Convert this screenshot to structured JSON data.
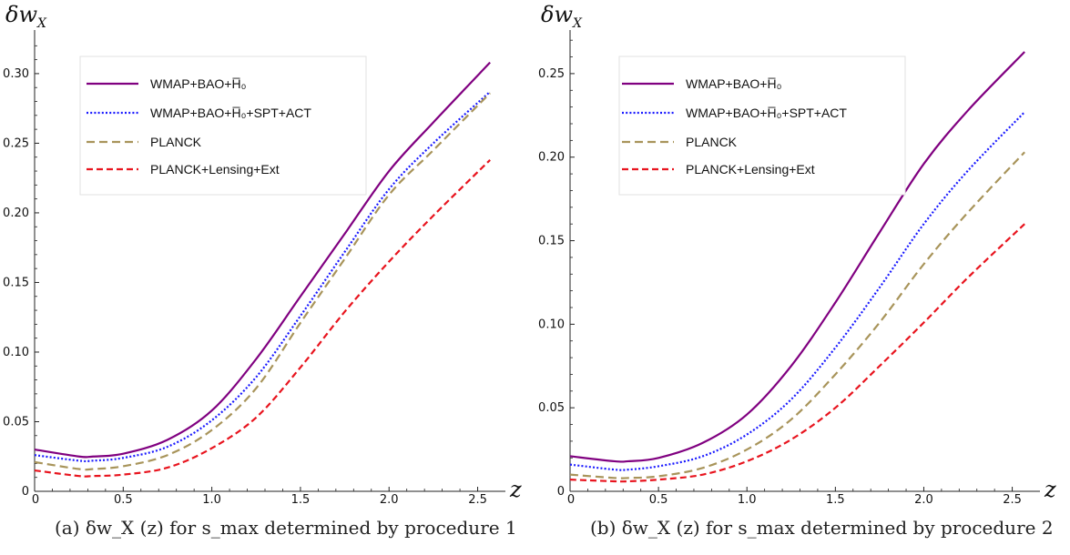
{
  "chart_data": [
    {
      "type": "line",
      "panel": "a",
      "ylabel": "δw_X",
      "xlabel": "z",
      "xlim": [
        0,
        2.6
      ],
      "ylim": [
        0,
        0.33
      ],
      "x_ticks": [
        "0",
        "0.5",
        "1.0",
        "1.5",
        "2.0",
        "2.5"
      ],
      "y_ticks": [
        "0",
        "0.05",
        "0.10",
        "0.15",
        "0.20",
        "0.25",
        "0.30"
      ],
      "grid": false,
      "legend_position": "top-left",
      "x": [
        0,
        0.25,
        0.33,
        0.5,
        0.75,
        1.0,
        1.25,
        1.5,
        1.75,
        2.0,
        2.25,
        2.57
      ],
      "series": [
        {
          "name": "WMAP+BAO+H̅₀",
          "color": "#800080",
          "style": "solid",
          "values": [
            0.03,
            0.025,
            0.025,
            0.027,
            0.037,
            0.058,
            0.095,
            0.14,
            0.185,
            0.23,
            0.265,
            0.308
          ]
        },
        {
          "name": "WMAP+BAO+H̅₀+SPT+ACT",
          "color": "#1a1aff",
          "style": "dotted",
          "values": [
            0.026,
            0.022,
            0.022,
            0.024,
            0.032,
            0.051,
            0.082,
            0.126,
            0.172,
            0.217,
            0.25,
            0.287
          ]
        },
        {
          "name": "PLANCK",
          "color": "#a8945a",
          "style": "dashed",
          "values": [
            0.021,
            0.016,
            0.016,
            0.018,
            0.026,
            0.044,
            0.074,
            0.121,
            0.167,
            0.213,
            0.245,
            0.286
          ]
        },
        {
          "name": "PLANCK+Lensing+Ext",
          "color": "#e8141e",
          "style": "dashed",
          "values": [
            0.015,
            0.011,
            0.011,
            0.012,
            0.017,
            0.031,
            0.053,
            0.089,
            0.129,
            0.165,
            0.198,
            0.238
          ]
        }
      ]
    },
    {
      "type": "line",
      "panel": "b",
      "ylabel": "δw_X",
      "xlabel": "z",
      "xlim": [
        0,
        2.6
      ],
      "ylim": [
        0,
        0.275
      ],
      "x_ticks": [
        "0",
        "0.5",
        "1.0",
        "1.5",
        "2.0",
        "2.5"
      ],
      "y_ticks": [
        "0",
        "0.05",
        "0.10",
        "0.15",
        "0.20",
        "0.25"
      ],
      "grid": false,
      "legend_position": "top-left",
      "x": [
        0,
        0.25,
        0.33,
        0.5,
        0.75,
        1.0,
        1.25,
        1.5,
        1.75,
        2.0,
        2.25,
        2.57
      ],
      "series": [
        {
          "name": "WMAP+BAO+H̅₀",
          "color": "#800080",
          "style": "solid",
          "values": [
            0.021,
            0.018,
            0.018,
            0.02,
            0.029,
            0.046,
            0.075,
            0.113,
            0.155,
            0.196,
            0.228,
            0.263
          ]
        },
        {
          "name": "WMAP+BAO+H̅₀+SPT+ACT",
          "color": "#1a1aff",
          "style": "dotted",
          "values": [
            0.016,
            0.013,
            0.013,
            0.015,
            0.021,
            0.034,
            0.055,
            0.086,
            0.122,
            0.16,
            0.192,
            0.227
          ]
        },
        {
          "name": "PLANCK",
          "color": "#a8945a",
          "style": "dashed",
          "values": [
            0.01,
            0.008,
            0.008,
            0.009,
            0.014,
            0.025,
            0.043,
            0.07,
            0.101,
            0.136,
            0.167,
            0.203
          ]
        },
        {
          "name": "PLANCK+Lensing+Ext",
          "color": "#e8141e",
          "style": "dashed",
          "values": [
            0.007,
            0.006,
            0.006,
            0.007,
            0.01,
            0.018,
            0.031,
            0.05,
            0.075,
            0.101,
            0.128,
            0.16
          ]
        }
      ]
    }
  ],
  "captions": {
    "a": "(a) δw_X (z) for s_max determined by procedure 1",
    "b": "(b) δw_X (z) for s_max determined by procedure 2"
  }
}
